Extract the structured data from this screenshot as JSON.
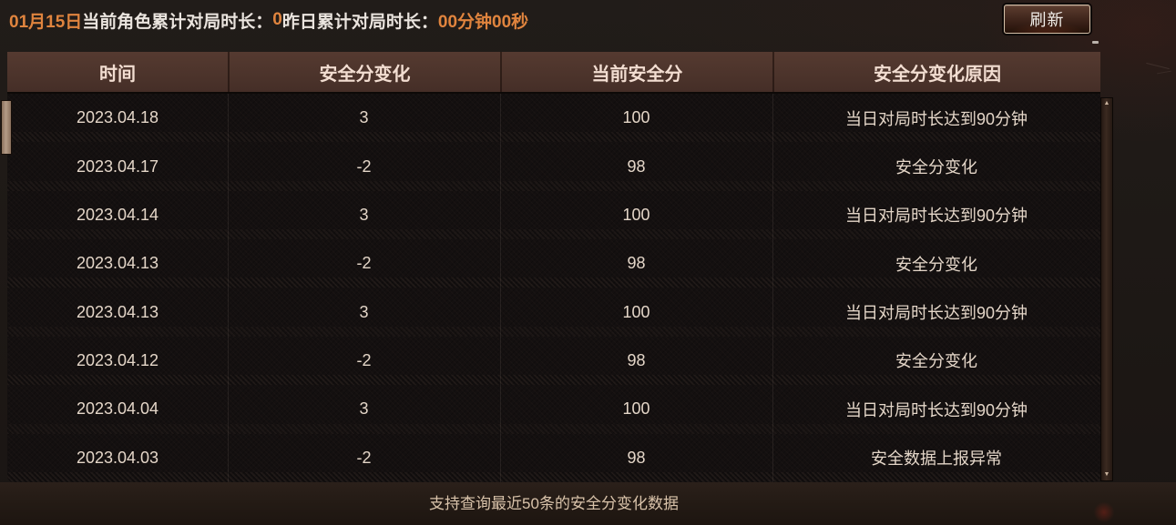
{
  "page": {
    "top_bar": {
      "date": "01月15日",
      "current_label": "当前角色累计对局时长：",
      "current_value": "0",
      "yesterday_label": "昨日累计对局时长：",
      "yesterday_value": "00分钟00秒"
    },
    "refresh_button": "刷新",
    "table": {
      "columns": [
        "时间",
        "安全分变化",
        "当前安全分",
        "安全分变化原因"
      ],
      "rows": [
        {
          "time": "2023.04.18",
          "change": "3",
          "score": "100",
          "reason": "当日对局时长达到90分钟"
        },
        {
          "time": "2023.04.17",
          "change": "-2",
          "score": "98",
          "reason": "安全分变化"
        },
        {
          "time": "2023.04.14",
          "change": "3",
          "score": "100",
          "reason": "当日对局时长达到90分钟"
        },
        {
          "time": "2023.04.13",
          "change": "-2",
          "score": "98",
          "reason": "安全分变化"
        },
        {
          "time": "2023.04.13",
          "change": "3",
          "score": "100",
          "reason": "当日对局时长达到90分钟"
        },
        {
          "time": "2023.04.12",
          "change": "-2",
          "score": "98",
          "reason": "安全分变化"
        },
        {
          "time": "2023.04.04",
          "change": "3",
          "score": "100",
          "reason": "当日对局时长达到90分钟"
        },
        {
          "time": "2023.04.03",
          "change": "-2",
          "score": "98",
          "reason": "安全数据上报异常"
        }
      ]
    },
    "footer_note": "支持查询最近50条的安全分变化数据",
    "scrollbar": {
      "up_icon": "▲",
      "down_icon": "▼"
    },
    "colors": {
      "accent_orange": "#e0843e",
      "header_bg": "#4b332b",
      "body_text": "#e4d6c8",
      "scroll_thumb": "#ab9078"
    }
  }
}
